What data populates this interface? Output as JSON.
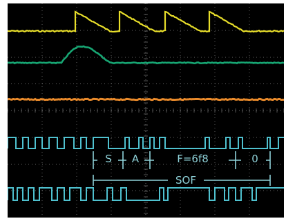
{
  "screen": {
    "background": "#000000",
    "grid_color": "#6a6a6a"
  },
  "traces": [
    {
      "id": "ch1",
      "color": "#e8de2a",
      "shape": "sawtooth"
    },
    {
      "id": "ch2",
      "color": "#17a673",
      "shape": "pulse"
    },
    {
      "id": "ch3",
      "color": "#e98a2b",
      "shape": "flat"
    },
    {
      "id": "ch4",
      "color": "#4fc1cf",
      "shape": "digital"
    },
    {
      "id": "ch5",
      "color": "#4fc1cf",
      "shape": "digital"
    }
  ],
  "decode": {
    "color": "#8fd2d9",
    "fields": [
      "S",
      "A",
      "F=6f8",
      "0"
    ],
    "packet_label": "SOF"
  }
}
